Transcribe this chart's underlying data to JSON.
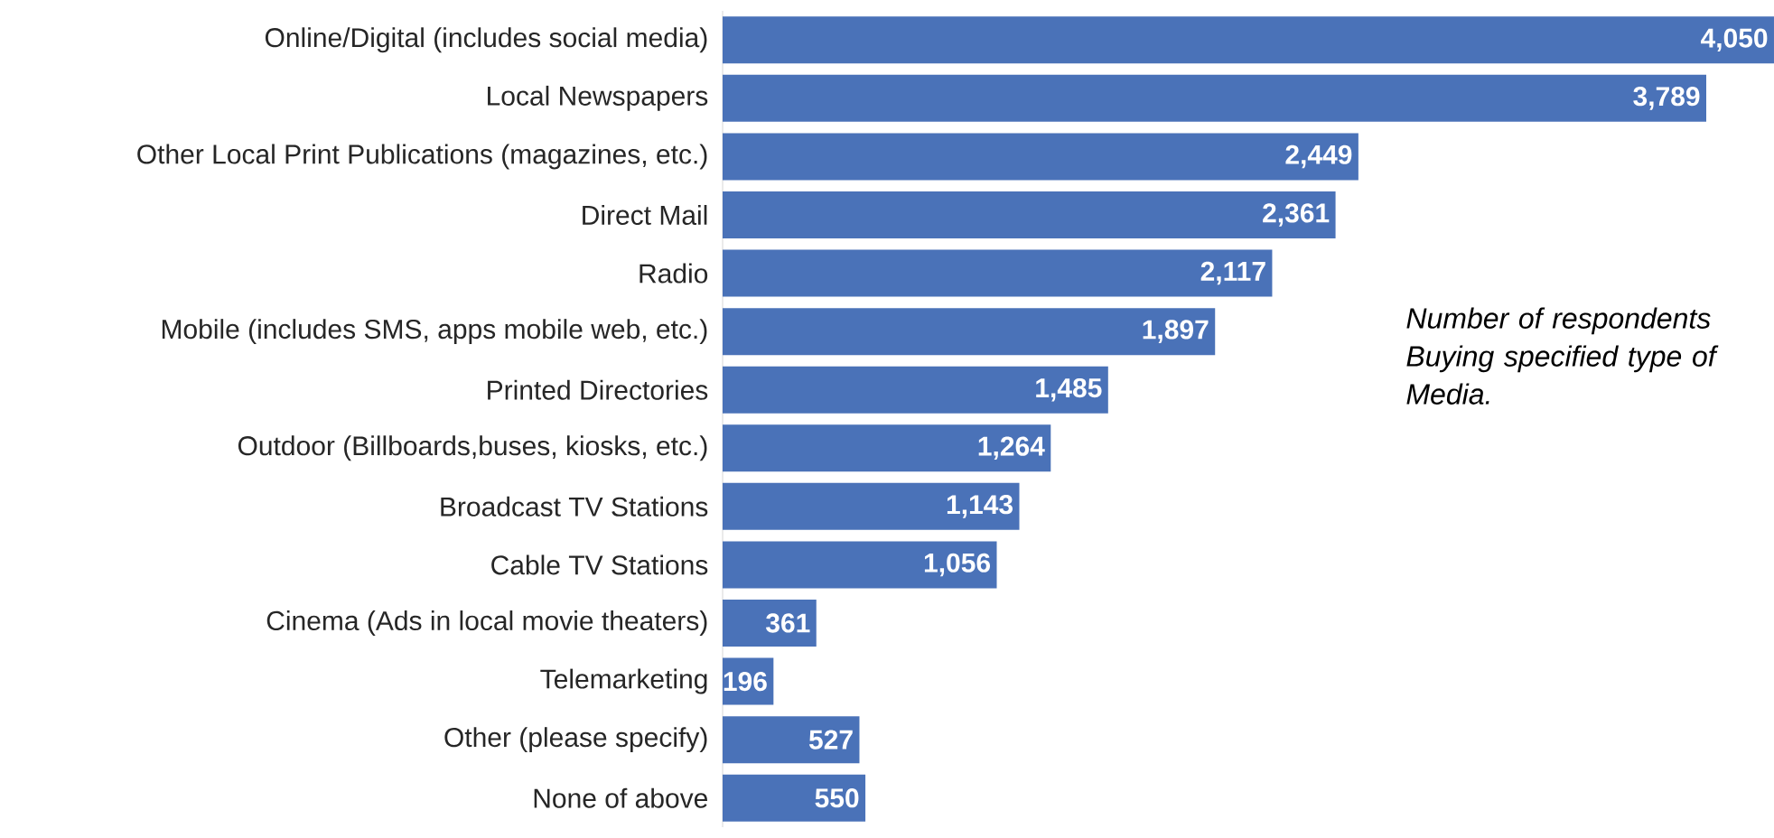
{
  "chart_data": {
    "type": "bar",
    "orientation": "horizontal",
    "categories": [
      "Online/Digital (includes social media)",
      "Local Newspapers",
      "Other Local Print Publications (magazines, etc.)",
      "Direct Mail",
      "Radio",
      "Mobile (includes SMS, apps mobile web, etc.)",
      "Printed Directories",
      "Outdoor (Billboards,buses, kiosks, etc.)",
      "Broadcast TV Stations",
      "Cable TV Stations",
      "Cinema (Ads in local movie theaters)",
      "Telemarketing",
      "Other (please specify)",
      "None of above"
    ],
    "values": [
      4050,
      3789,
      2449,
      2361,
      2117,
      1897,
      1485,
      1264,
      1143,
      1056,
      361,
      196,
      527,
      550
    ],
    "value_labels": [
      "4,050",
      "3,789",
      "2,449",
      "2,361",
      "2,117",
      "1,897",
      "1,485",
      "1,264",
      "1,143",
      "1,056",
      "361",
      "196",
      "527",
      "550"
    ],
    "color": "#4a72b8",
    "annotations": [
      "Number of respondents Buying specified type of Media."
    ]
  }
}
